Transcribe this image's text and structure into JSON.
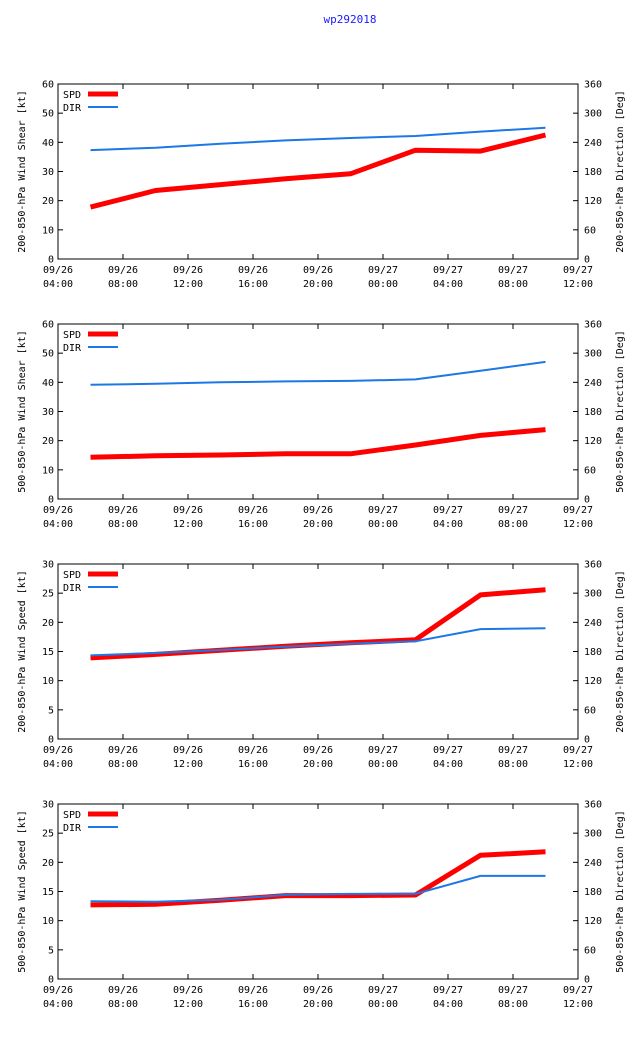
{
  "page": {
    "title": "wp292018"
  },
  "colors": {
    "spd": "#ff0000",
    "dir": "#1c78e6",
    "axis": "#000000"
  },
  "chart_data": [
    {
      "type": "line",
      "ylabel_left": "200-850-hPa Wind Shear [kt]",
      "ylabel_right": "200-850-hPa Direction [Deg]",
      "ylim_left": [
        0,
        60
      ],
      "yticks_left": [
        "0",
        "10",
        "20",
        "30",
        "40",
        "50",
        "60"
      ],
      "ylim_right": [
        0,
        360
      ],
      "yticks_right": [
        "0",
        "60",
        "120",
        "180",
        "240",
        "300",
        "360"
      ],
      "xlim_hours": [
        0,
        32
      ],
      "xticks": [
        {
          "date": "09/26",
          "time": "04:00"
        },
        {
          "date": "09/26",
          "time": "08:00"
        },
        {
          "date": "09/26",
          "time": "12:00"
        },
        {
          "date": "09/26",
          "time": "16:00"
        },
        {
          "date": "09/26",
          "time": "20:00"
        },
        {
          "date": "09/27",
          "time": "00:00"
        },
        {
          "date": "09/27",
          "time": "04:00"
        },
        {
          "date": "09/27",
          "time": "08:00"
        },
        {
          "date": "09/27",
          "time": "12:00"
        }
      ],
      "legend": [
        "SPD",
        "DIR"
      ],
      "series": [
        {
          "name": "SPD",
          "axis": "left",
          "x": [
            2,
            6,
            10,
            14,
            18,
            22,
            26,
            30
          ],
          "values": [
            17.8,
            23.5,
            25.5,
            27.5,
            29.2,
            37.3,
            37.0,
            42.5
          ]
        },
        {
          "name": "DIR",
          "axis": "right",
          "x": [
            2,
            6,
            10,
            14,
            18,
            22,
            26,
            30
          ],
          "values": [
            224,
            229,
            237,
            244,
            249,
            253,
            262,
            270
          ]
        }
      ]
    },
    {
      "type": "line",
      "ylabel_left": "500-850-hPa Wind Shear [kt]",
      "ylabel_right": "500-850-hPa Direction [Deg]",
      "ylim_left": [
        0,
        60
      ],
      "yticks_left": [
        "0",
        "10",
        "20",
        "30",
        "40",
        "50",
        "60"
      ],
      "ylim_right": [
        0,
        360
      ],
      "yticks_right": [
        "0",
        "60",
        "120",
        "180",
        "240",
        "300",
        "360"
      ],
      "xlim_hours": [
        0,
        32
      ],
      "xticks": [
        {
          "date": "09/26",
          "time": "04:00"
        },
        {
          "date": "09/26",
          "time": "08:00"
        },
        {
          "date": "09/26",
          "time": "12:00"
        },
        {
          "date": "09/26",
          "time": "16:00"
        },
        {
          "date": "09/26",
          "time": "20:00"
        },
        {
          "date": "09/27",
          "time": "00:00"
        },
        {
          "date": "09/27",
          "time": "04:00"
        },
        {
          "date": "09/27",
          "time": "08:00"
        },
        {
          "date": "09/27",
          "time": "12:00"
        }
      ],
      "legend": [
        "SPD",
        "DIR"
      ],
      "series": [
        {
          "name": "SPD",
          "axis": "left",
          "x": [
            2,
            6,
            10,
            14,
            18,
            22,
            26,
            30
          ],
          "values": [
            14.3,
            14.8,
            15.1,
            15.5,
            15.5,
            18.5,
            21.8,
            23.8
          ]
        },
        {
          "name": "DIR",
          "axis": "right",
          "x": [
            2,
            6,
            10,
            14,
            18,
            22,
            26,
            30
          ],
          "values": [
            235,
            237,
            240,
            242,
            243,
            246,
            264,
            282
          ]
        }
      ]
    },
    {
      "type": "line",
      "ylabel_left": "200-850-hPa Wind Speed [kt]",
      "ylabel_right": "200-850-hPa Direction [Deg]",
      "ylim_left": [
        0,
        30
      ],
      "yticks_left": [
        "0",
        "5",
        "10",
        "15",
        "20",
        "25",
        "30"
      ],
      "ylim_right": [
        0,
        360
      ],
      "yticks_right": [
        "0",
        "60",
        "120",
        "180",
        "240",
        "300",
        "360"
      ],
      "xlim_hours": [
        0,
        32
      ],
      "xticks": [
        {
          "date": "09/26",
          "time": "04:00"
        },
        {
          "date": "09/26",
          "time": "08:00"
        },
        {
          "date": "09/26",
          "time": "12:00"
        },
        {
          "date": "09/26",
          "time": "16:00"
        },
        {
          "date": "09/26",
          "time": "20:00"
        },
        {
          "date": "09/27",
          "time": "00:00"
        },
        {
          "date": "09/27",
          "time": "04:00"
        },
        {
          "date": "09/27",
          "time": "08:00"
        },
        {
          "date": "09/27",
          "time": "12:00"
        }
      ],
      "legend": [
        "SPD",
        "DIR"
      ],
      "series": [
        {
          "name": "SPD",
          "axis": "left",
          "x": [
            2,
            6,
            10,
            14,
            18,
            22,
            26,
            30
          ],
          "values": [
            13.9,
            14.5,
            15.2,
            15.9,
            16.5,
            17.0,
            24.7,
            25.6
          ]
        },
        {
          "name": "DIR",
          "axis": "right",
          "x": [
            2,
            6,
            10,
            14,
            18,
            22,
            26,
            30
          ],
          "values": [
            172,
            177,
            183,
            190,
            196,
            201,
            226,
            228
          ]
        }
      ]
    },
    {
      "type": "line",
      "ylabel_left": "500-850-hPa Wind Speed [kt]",
      "ylabel_right": "500-850-hPa Direction [Deg]",
      "ylim_left": [
        0,
        30
      ],
      "yticks_left": [
        "0",
        "5",
        "10",
        "15",
        "20",
        "25",
        "30"
      ],
      "ylim_right": [
        0,
        360
      ],
      "yticks_right": [
        "0",
        "60",
        "120",
        "180",
        "240",
        "300",
        "360"
      ],
      "xlim_hours": [
        0,
        32
      ],
      "xticks": [
        {
          "date": "09/26",
          "time": "04:00"
        },
        {
          "date": "09/26",
          "time": "08:00"
        },
        {
          "date": "09/26",
          "time": "12:00"
        },
        {
          "date": "09/26",
          "time": "16:00"
        },
        {
          "date": "09/26",
          "time": "20:00"
        },
        {
          "date": "09/27",
          "time": "00:00"
        },
        {
          "date": "09/27",
          "time": "04:00"
        },
        {
          "date": "09/27",
          "time": "08:00"
        },
        {
          "date": "09/27",
          "time": "12:00"
        }
      ],
      "legend": [
        "SPD",
        "DIR"
      ],
      "series": [
        {
          "name": "SPD",
          "axis": "left",
          "x": [
            2,
            6,
            10,
            14,
            18,
            22,
            26,
            30
          ],
          "values": [
            12.7,
            12.8,
            13.5,
            14.3,
            14.3,
            14.4,
            21.2,
            21.8
          ]
        },
        {
          "name": "DIR",
          "axis": "right",
          "x": [
            2,
            6,
            10,
            14,
            18,
            22,
            26,
            30
          ],
          "values": [
            160,
            159,
            163,
            173,
            175,
            175,
            212,
            212
          ]
        }
      ]
    }
  ]
}
